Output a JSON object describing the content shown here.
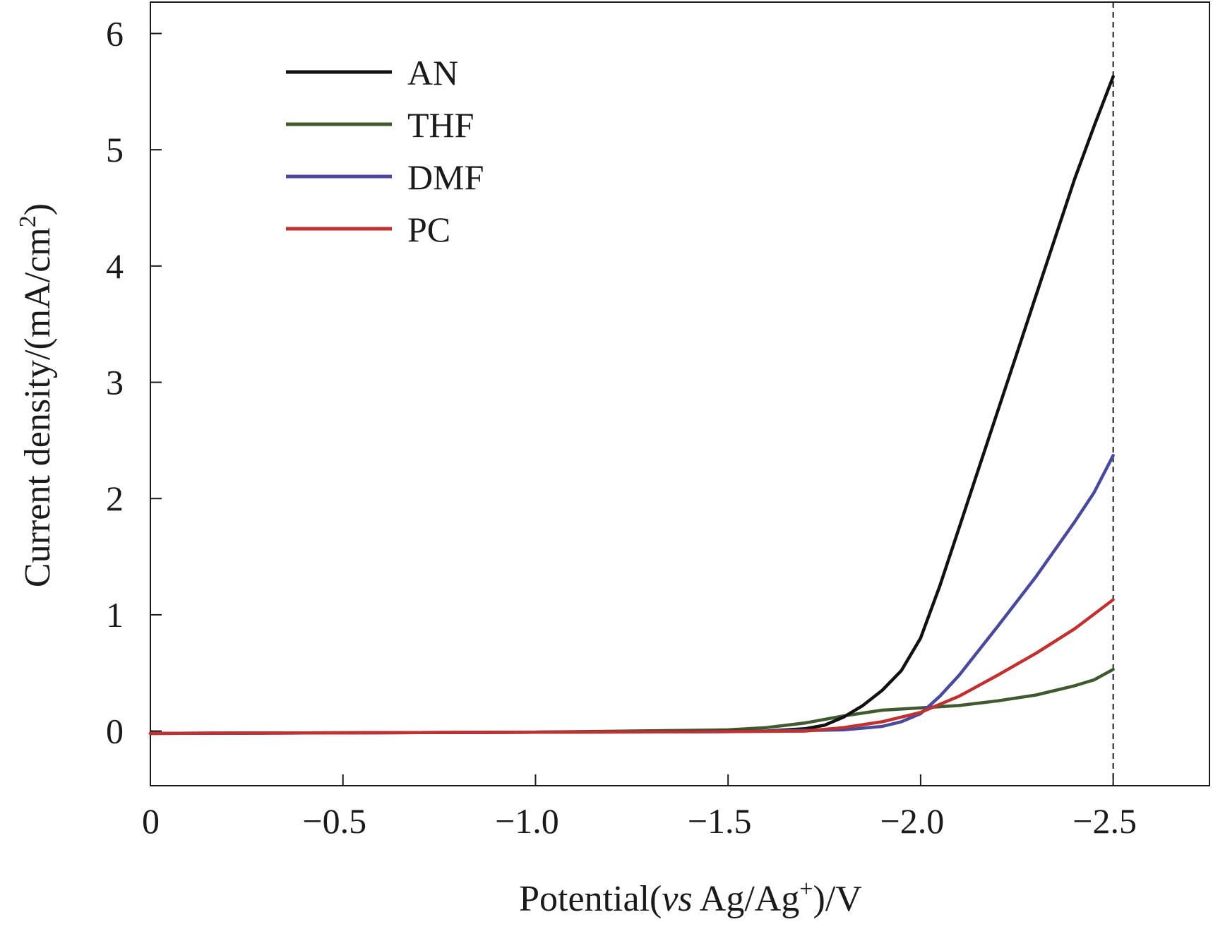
{
  "chart_data": {
    "type": "line",
    "title": "",
    "xlabel": {
      "prefix": "Potential(",
      "italic": "vs",
      "middle": " Ag/Ag",
      "sup": "+",
      "suffix": ")/V"
    },
    "ylabel": {
      "main": "Current density/(mA/cm",
      "sup": "2",
      "suffix": ")"
    },
    "xlim": [
      0,
      -2.75
    ],
    "ylim": [
      -0.47,
      6.27
    ],
    "xticks": [
      0,
      -0.5,
      -1.0,
      -1.5,
      -2.0,
      -2.5
    ],
    "xtick_labels": [
      "0",
      "−0.5",
      "−1.0",
      "−1.5",
      "−2.0",
      "−2.5"
    ],
    "yticks": [
      0,
      1,
      2,
      3,
      4,
      5,
      6
    ],
    "ytick_labels": [
      "0",
      "1",
      "2",
      "3",
      "4",
      "5",
      "6"
    ],
    "vline": {
      "x": -2.5,
      "style": "dashed"
    },
    "legend_position": "top-left",
    "series": [
      {
        "name": "AN",
        "color": "#111111",
        "points": [
          [
            0,
            -0.02
          ],
          [
            -0.5,
            -0.015
          ],
          [
            -1.0,
            -0.01
          ],
          [
            -1.4,
            -0.005
          ],
          [
            -1.6,
            0.0
          ],
          [
            -1.7,
            0.02
          ],
          [
            -1.75,
            0.05
          ],
          [
            -1.8,
            0.12
          ],
          [
            -1.85,
            0.22
          ],
          [
            -1.9,
            0.35
          ],
          [
            -1.95,
            0.52
          ],
          [
            -2.0,
            0.8
          ],
          [
            -2.05,
            1.25
          ],
          [
            -2.1,
            1.75
          ],
          [
            -2.15,
            2.25
          ],
          [
            -2.2,
            2.75
          ],
          [
            -2.25,
            3.25
          ],
          [
            -2.3,
            3.75
          ],
          [
            -2.35,
            4.25
          ],
          [
            -2.4,
            4.75
          ],
          [
            -2.45,
            5.2
          ],
          [
            -2.5,
            5.63
          ]
        ]
      },
      {
        "name": "THF",
        "color": "#3f5a2e",
        "points": [
          [
            0,
            -0.02
          ],
          [
            -0.5,
            -0.015
          ],
          [
            -1.0,
            -0.01
          ],
          [
            -1.5,
            0.01
          ],
          [
            -1.6,
            0.03
          ],
          [
            -1.7,
            0.07
          ],
          [
            -1.8,
            0.13
          ],
          [
            -1.9,
            0.18
          ],
          [
            -2.0,
            0.2
          ],
          [
            -2.1,
            0.22
          ],
          [
            -2.2,
            0.26
          ],
          [
            -2.3,
            0.31
          ],
          [
            -2.4,
            0.39
          ],
          [
            -2.45,
            0.44
          ],
          [
            -2.5,
            0.53
          ]
        ]
      },
      {
        "name": "DMF",
        "color": "#4a4a9c",
        "points": [
          [
            0,
            -0.02
          ],
          [
            -0.5,
            -0.015
          ],
          [
            -1.0,
            -0.01
          ],
          [
            -1.5,
            -0.005
          ],
          [
            -1.8,
            0.01
          ],
          [
            -1.9,
            0.04
          ],
          [
            -1.95,
            0.08
          ],
          [
            -2.0,
            0.15
          ],
          [
            -2.05,
            0.3
          ],
          [
            -2.1,
            0.48
          ],
          [
            -2.2,
            0.9
          ],
          [
            -2.3,
            1.33
          ],
          [
            -2.4,
            1.8
          ],
          [
            -2.45,
            2.05
          ],
          [
            -2.5,
            2.37
          ]
        ]
      },
      {
        "name": "PC",
        "color": "#c0312f",
        "points": [
          [
            0,
            -0.02
          ],
          [
            -0.5,
            -0.015
          ],
          [
            -1.0,
            -0.01
          ],
          [
            -1.5,
            -0.005
          ],
          [
            -1.7,
            0.0
          ],
          [
            -1.8,
            0.03
          ],
          [
            -1.9,
            0.08
          ],
          [
            -2.0,
            0.16
          ],
          [
            -2.1,
            0.3
          ],
          [
            -2.2,
            0.48
          ],
          [
            -2.3,
            0.67
          ],
          [
            -2.4,
            0.88
          ],
          [
            -2.5,
            1.13
          ]
        ]
      }
    ]
  }
}
